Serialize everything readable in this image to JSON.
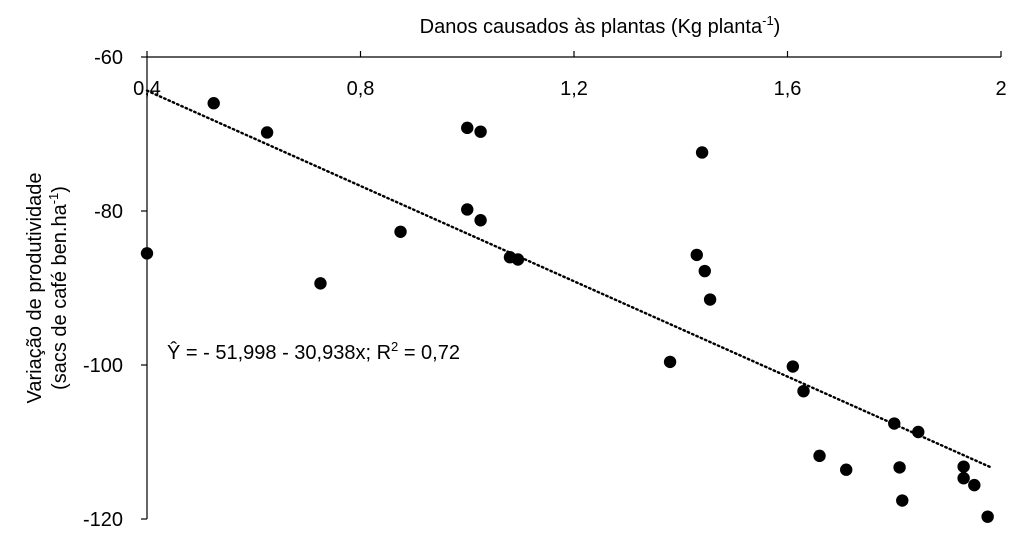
{
  "chart_data": {
    "type": "scatter",
    "title": "",
    "xlabel": {
      "text": "Danos causados às plantas (Kg planta",
      "sup": "-1",
      "suffix": ")"
    },
    "ylabel": {
      "line1": "Variação de produtividade",
      "line2": "(sacs de café ben.ha",
      "sup": "-1",
      "suffix": ")"
    },
    "xlim": [
      0.4,
      2.0
    ],
    "ylim": [
      -120,
      -60
    ],
    "x_ticks": [
      0.4,
      0.8,
      1.2,
      1.6,
      2.0
    ],
    "x_tick_labels": [
      "0,4",
      "0,8",
      "1,2",
      "1,6",
      "2"
    ],
    "y_ticks": [
      -60,
      -80,
      -100,
      -120
    ],
    "y_tick_labels": [
      "-60",
      "-80",
      "-100",
      "-120"
    ],
    "grid": false,
    "legend": "none",
    "marker_color": "#000000",
    "series": [
      {
        "x": [
          0.4,
          0.525,
          0.625,
          0.725,
          0.875,
          1.0,
          1.025,
          1.0,
          1.025,
          1.08,
          1.095,
          1.38,
          1.43,
          1.44,
          1.445,
          1.455,
          1.61,
          1.63,
          1.66,
          1.71,
          1.8,
          1.81,
          1.815,
          1.845,
          1.93,
          1.93,
          1.95,
          1.975
        ],
        "y": [
          -85.5,
          -66.0,
          -69.8,
          -89.4,
          -82.7,
          -69.2,
          -69.7,
          -79.8,
          -81.2,
          -86.0,
          -86.3,
          -99.6,
          -85.7,
          -72.4,
          -87.8,
          -91.5,
          -100.2,
          -103.4,
          -111.8,
          -113.6,
          -107.6,
          -113.3,
          -117.6,
          -108.7,
          -113.2,
          -114.7,
          -115.6,
          -119.7
        ]
      }
    ],
    "trendline": {
      "x": [
        0.4,
        1.98
      ],
      "y": [
        -64.37,
        -113.26
      ],
      "style": "dotted"
    },
    "equation": {
      "prefix": "Ŷ = - 51,998 - 30,938x; R",
      "sup": "2",
      "suffix": " = 0,72"
    }
  }
}
